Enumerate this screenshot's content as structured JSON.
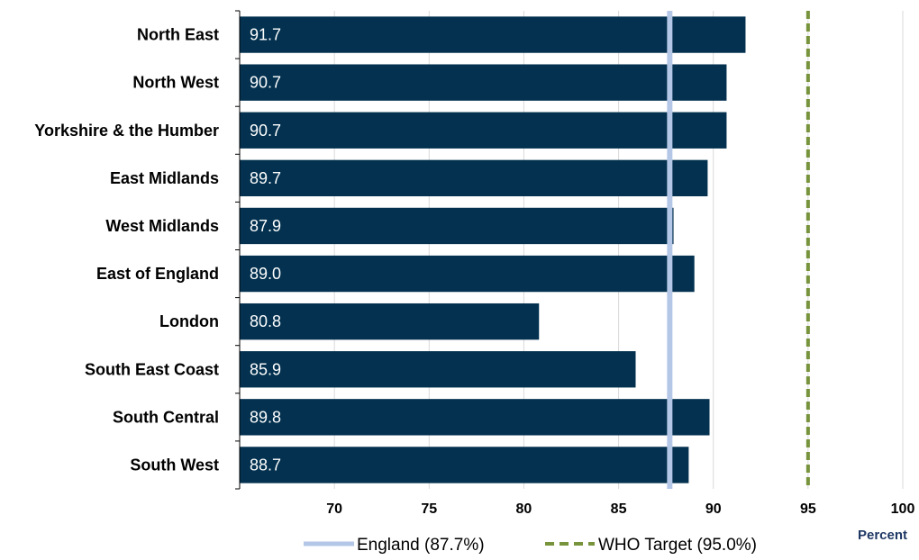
{
  "chart_data": {
    "type": "bar",
    "orientation": "horizontal",
    "categories": [
      "North East",
      "North West",
      "Yorkshire & the Humber",
      "East Midlands",
      "West Midlands",
      "East of England",
      "London",
      "South East Coast",
      "South Central",
      "South West"
    ],
    "values": [
      91.7,
      90.7,
      90.7,
      89.7,
      87.9,
      89.0,
      80.8,
      85.9,
      89.8,
      88.7
    ],
    "value_labels": [
      "91.7",
      "90.7",
      "90.7",
      "89.7",
      "87.9",
      "89.0",
      "80.8",
      "85.9",
      "89.8",
      "88.7"
    ],
    "xlim": [
      65,
      100
    ],
    "xticks": [
      70,
      75,
      80,
      85,
      90,
      95,
      100
    ],
    "xtick_labels": [
      "70",
      "75",
      "80",
      "85",
      "90",
      "95",
      "100"
    ],
    "xlabel": "Percent",
    "grid": "vertical",
    "legend_position": "bottom",
    "reference_lines": [
      {
        "name": "England (87.7%)",
        "value": 87.7,
        "style": "solid",
        "color": "#b4c7e7"
      },
      {
        "name": "WHO Target (95.0%)",
        "value": 95.0,
        "style": "dashed",
        "color": "#77933c"
      }
    ],
    "colors": {
      "bar": "#03314f",
      "bar_text": "#ffffff",
      "grid": "#d9d9d9",
      "axis_title": "#1f3864"
    }
  }
}
